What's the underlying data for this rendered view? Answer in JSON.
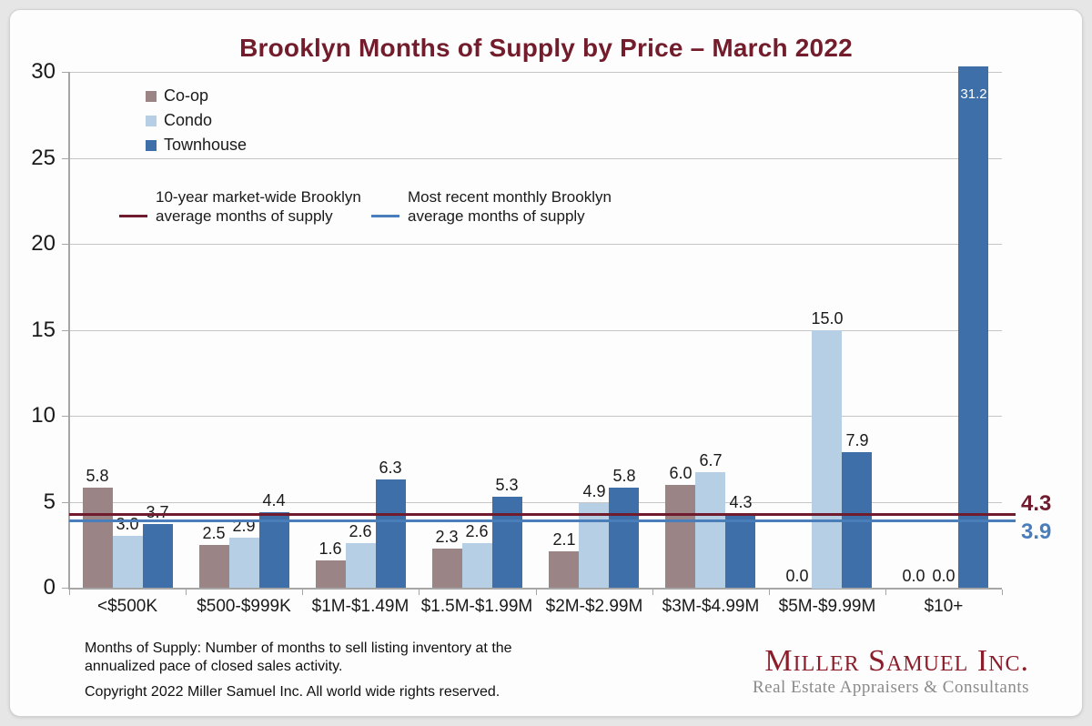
{
  "title": "Brooklyn Months of Supply by Price – March 2022",
  "chart_data": {
    "type": "bar",
    "title": "Brooklyn Months of Supply by Price – March 2022",
    "categories": [
      "<$500K",
      "$500-$999K",
      "$1M-$1.49M",
      "$1.5M-$1.99M",
      "$2M-$2.99M",
      "$3M-$4.99M",
      "$5M-$9.99M",
      "$10+"
    ],
    "series": [
      {
        "name": "Co-op",
        "color": "#9a8485",
        "values": [
          5.8,
          2.5,
          1.6,
          2.3,
          2.1,
          6.0,
          0.0,
          0.0
        ]
      },
      {
        "name": "Condo",
        "color": "#b7cfe4",
        "values": [
          3.0,
          2.9,
          2.6,
          2.6,
          4.9,
          6.7,
          15.0,
          0.0
        ]
      },
      {
        "name": "Townhouse",
        "color": "#3e6fa8",
        "values": [
          3.7,
          4.4,
          6.3,
          5.3,
          5.8,
          4.3,
          7.9,
          31.2
        ]
      }
    ],
    "ref_lines": [
      {
        "label": "10-year market-wide Brooklyn average months of supply",
        "value": 4.3,
        "color": "#701c2e"
      },
      {
        "label": "Most recent monthly Brooklyn average months of supply",
        "value": 3.9,
        "color": "#4a7ebb"
      }
    ],
    "xlabel": "",
    "ylabel": "",
    "ylim": [
      0,
      30
    ],
    "yticks": [
      0,
      5,
      10,
      15,
      20,
      25,
      30
    ],
    "grid": true,
    "legend_position": "top-left"
  },
  "footnote": {
    "definition": "Months of Supply: Number of months to sell listing inventory at the annualized pace of closed sales activity.",
    "copyright": "Copyright 2022 Miller Samuel Inc.  All world wide rights reserved."
  },
  "logo": {
    "name": "Miller Samuel Inc.",
    "tagline": "Real Estate Appraisers & Consultants"
  }
}
